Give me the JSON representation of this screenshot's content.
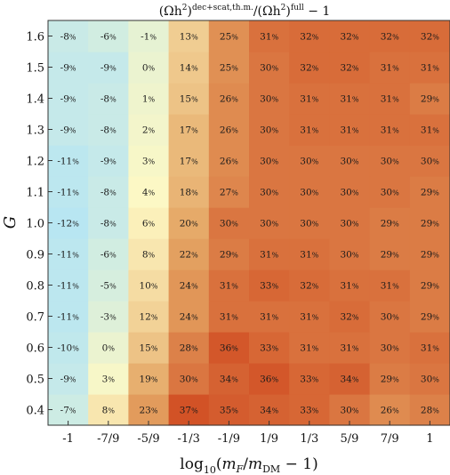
{
  "chart_data": {
    "type": "heatmap",
    "title": "(Ωh²)^dec+scat,th.m./(Ωh²)^full − 1",
    "title_parts": {
      "open": "(Ωh",
      "sq": "2",
      "close1": ")",
      "sup": "dec+scat,th.m.",
      "mid": "/(Ωh",
      "sq2": "2",
      "close2": ")",
      "sup2": "full",
      "tail": " − 1"
    },
    "xlabel": "log₁₀(m_F/m_DM − 1)",
    "xlabel_parts": {
      "pre": "log",
      "sub": "10",
      "mid": "(",
      "m1": "m",
      "s1": "F",
      "slash": "/",
      "m2": "m",
      "s2": "DM",
      "tail": " − 1)"
    },
    "ylabel": "G",
    "x": [
      "-1",
      "-7/9",
      "-5/9",
      "-1/3",
      "-1/9",
      "1/9",
      "1/3",
      "5/9",
      "7/9",
      "1"
    ],
    "y": [
      "0.4",
      "0.5",
      "0.6",
      "0.7",
      "0.8",
      "0.9",
      "1.0",
      "1.1",
      "1.2",
      "1.3",
      "1.4",
      "1.5",
      "1.6"
    ],
    "unit": "%",
    "values": [
      [
        -7,
        8,
        23,
        37,
        35,
        34,
        33,
        30,
        26,
        28
      ],
      [
        -9,
        3,
        19,
        30,
        34,
        36,
        33,
        34,
        29,
        30
      ],
      [
        -10,
        0,
        15,
        28,
        36,
        33,
        31,
        31,
        30,
        31
      ],
      [
        -11,
        -3,
        12,
        24,
        31,
        31,
        31,
        32,
        30,
        29
      ],
      [
        -11,
        -5,
        10,
        24,
        31,
        33,
        32,
        31,
        31,
        29
      ],
      [
        -11,
        -6,
        8,
        22,
        29,
        31,
        31,
        30,
        29,
        29
      ],
      [
        -12,
        -8,
        6,
        20,
        30,
        30,
        30,
        30,
        29,
        29
      ],
      [
        -11,
        -8,
        4,
        18,
        27,
        30,
        30,
        30,
        30,
        29
      ],
      [
        -11,
        -9,
        3,
        17,
        26,
        30,
        30,
        30,
        30,
        30
      ],
      [
        -9,
        -8,
        2,
        17,
        26,
        30,
        31,
        31,
        31,
        31
      ],
      [
        -9,
        -8,
        1,
        15,
        26,
        30,
        31,
        31,
        31,
        29
      ],
      [
        -9,
        -9,
        0,
        14,
        25,
        30,
        32,
        32,
        31,
        31
      ],
      [
        -8,
        -6,
        -1,
        13,
        25,
        31,
        32,
        32,
        32,
        32
      ]
    ],
    "colormap": [
      "#b8e6f2",
      "#fdf8c4",
      "#e5a765",
      "#d25226"
    ],
    "vrange": [
      -12,
      37
    ]
  }
}
